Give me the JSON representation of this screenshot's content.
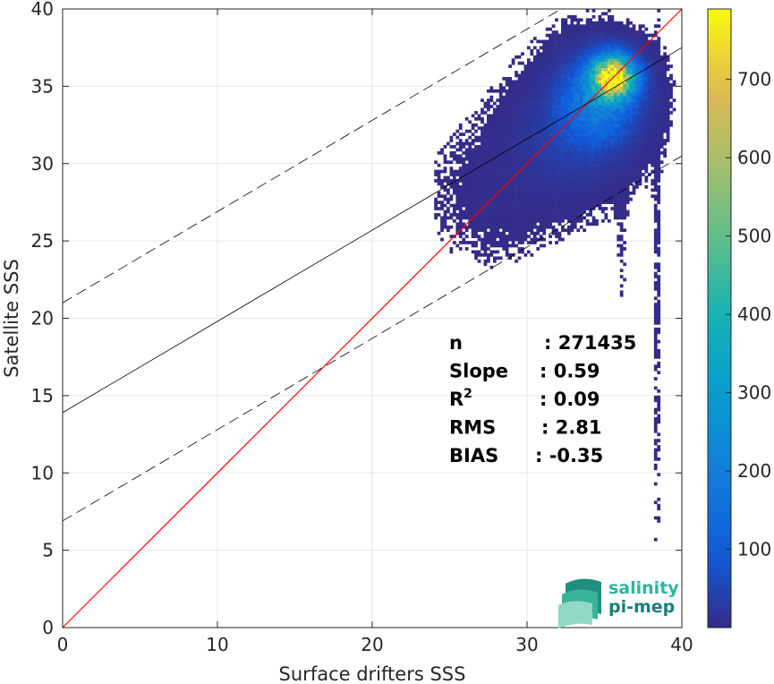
{
  "chart_data": {
    "type": "heatmap",
    "title": "",
    "xlabel": "Surface drifters SSS",
    "ylabel": "Satellite SSS",
    "xlim": [
      0,
      40
    ],
    "ylim": [
      0,
      40
    ],
    "xticks": [
      "0",
      "10",
      "20",
      "30",
      "40"
    ],
    "yticks": [
      "0",
      "5",
      "10",
      "15",
      "20",
      "25",
      "30",
      "35",
      "40"
    ],
    "grid": true,
    "colormap": "parula",
    "colorbar": {
      "min": 0,
      "max": 790,
      "ticks": [
        "100",
        "200",
        "300",
        "400",
        "500",
        "600",
        "700"
      ]
    },
    "density_clusters": [
      {
        "x": 35.5,
        "y": 35.5,
        "sx": 0.9,
        "sy": 0.9,
        "peak": 780
      },
      {
        "x": 34.5,
        "y": 34.0,
        "sx": 1.6,
        "sy": 1.8,
        "peak": 200
      },
      {
        "x": 32.5,
        "y": 31.5,
        "sx": 2.2,
        "sy": 2.2,
        "peak": 35
      },
      {
        "x": 28.0,
        "y": 28.0,
        "sx": 2.5,
        "sy": 2.5,
        "peak": 6
      },
      {
        "x": 38.3,
        "y": 25.0,
        "sx": 0.15,
        "sy": 12.0,
        "peak": 4
      },
      {
        "x": 36.0,
        "y": 27.0,
        "sx": 0.2,
        "sy": 4.0,
        "peak": 3
      }
    ],
    "lines": [
      {
        "name": "1:1",
        "intercept": 0,
        "slope": 1,
        "color": "#ff0000",
        "style": "solid"
      },
      {
        "name": "fit",
        "intercept": 13.9,
        "slope": 0.59,
        "color": "#000000",
        "style": "solid"
      },
      {
        "name": "fit +2sd",
        "intercept": 21.0,
        "slope": 0.59,
        "color": "#000000",
        "style": "dashed"
      },
      {
        "name": "fit -2sd",
        "intercept": 6.9,
        "slope": 0.59,
        "color": "#000000",
        "style": "dashed"
      }
    ],
    "stats": [
      {
        "label": "n",
        "value": ": 271435"
      },
      {
        "label": "Slope",
        "value": ": 0.59"
      },
      {
        "label": "R",
        "sup": "2",
        "value": ": 0.09"
      },
      {
        "label": "RMS",
        "value": ": 2.81"
      },
      {
        "label": "BIAS",
        "value": ": -0.35"
      }
    ]
  },
  "logo": {
    "line1": "salinity",
    "line2": "pi-mep",
    "color1": "#2ab5a0",
    "color2": "#1b7f78"
  }
}
